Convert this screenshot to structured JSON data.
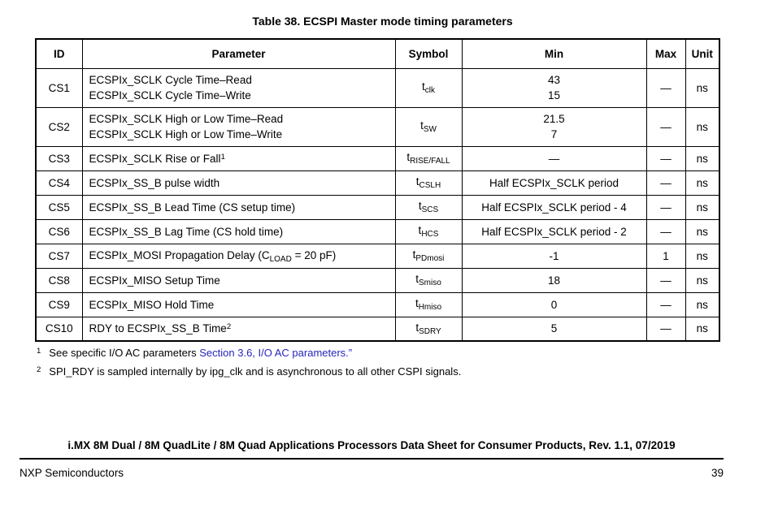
{
  "page": {
    "title": "Table 38. ECSPI Master mode timing parameters"
  },
  "colors": {
    "link": "#2525bd",
    "text": "#000000",
    "background": "#ffffff",
    "border": "#000000"
  },
  "table": {
    "headers": [
      "ID",
      "Parameter",
      "Symbol",
      "Min",
      "Max",
      "Unit"
    ],
    "rows": [
      {
        "id": "CS1",
        "parameter": [
          [
            {
              "t": "text",
              "v": "ECSPIx_SCLK Cycle Time–Read"
            }
          ],
          [
            {
              "t": "text",
              "v": "ECSPIx_SCLK Cycle Time–Write"
            }
          ]
        ],
        "symbol": {
          "base": "t",
          "sub": "clk"
        },
        "min": [
          "43",
          "15"
        ],
        "max": "—",
        "unit": "ns"
      },
      {
        "id": "CS2",
        "parameter": [
          [
            {
              "t": "text",
              "v": "ECSPIx_SCLK High or Low Time–Read"
            }
          ],
          [
            {
              "t": "text",
              "v": "ECSPIx_SCLK High or Low Time–Write"
            }
          ]
        ],
        "symbol": {
          "base": "t",
          "sub": "SW"
        },
        "min": [
          "21.5",
          "7"
        ],
        "max": "—",
        "unit": "ns"
      },
      {
        "id": "CS3",
        "parameter": [
          [
            {
              "t": "text",
              "v": "ECSPIx_SCLK Rise or Fall"
            },
            {
              "t": "sup",
              "v": "1"
            }
          ]
        ],
        "symbol": {
          "base": "t",
          "sub": "RISE/FALL"
        },
        "min": [
          "—"
        ],
        "max": "—",
        "unit": "ns"
      },
      {
        "id": "CS4",
        "parameter": [
          [
            {
              "t": "text",
              "v": "ECSPIx_SS_B pulse width"
            }
          ]
        ],
        "symbol": {
          "base": "t",
          "sub": "CSLH"
        },
        "min": [
          "Half ECSPIx_SCLK period"
        ],
        "max": "—",
        "unit": "ns"
      },
      {
        "id": "CS5",
        "parameter": [
          [
            {
              "t": "text",
              "v": "ECSPIx_SS_B Lead Time (CS setup time)"
            }
          ]
        ],
        "symbol": {
          "base": "t",
          "sub": "SCS"
        },
        "min": [
          "Half ECSPIx_SCLK period - 4"
        ],
        "max": "—",
        "unit": "ns"
      },
      {
        "id": "CS6",
        "parameter": [
          [
            {
              "t": "text",
              "v": "ECSPIx_SS_B Lag Time (CS hold time)"
            }
          ]
        ],
        "symbol": {
          "base": "t",
          "sub": "HCS"
        },
        "min": [
          "Half ECSPIx_SCLK period - 2"
        ],
        "max": "—",
        "unit": "ns"
      },
      {
        "id": "CS7",
        "parameter": [
          [
            {
              "t": "text",
              "v": "ECSPIx_MOSI Propagation Delay (C"
            },
            {
              "t": "sub",
              "v": "LOAD"
            },
            {
              "t": "text",
              "v": " = 20 pF)"
            }
          ]
        ],
        "symbol": {
          "base": "t",
          "sub": "PDmosi"
        },
        "min": [
          "-1"
        ],
        "max": "1",
        "unit": "ns"
      },
      {
        "id": "CS8",
        "parameter": [
          [
            {
              "t": "text",
              "v": "ECSPIx_MISO Setup Time"
            }
          ]
        ],
        "symbol": {
          "base": "t",
          "sub": "Smiso"
        },
        "min": [
          "18"
        ],
        "max": "—",
        "unit": "ns"
      },
      {
        "id": "CS9",
        "parameter": [
          [
            {
              "t": "text",
              "v": "ECSPIx_MISO Hold Time"
            }
          ]
        ],
        "symbol": {
          "base": "t",
          "sub": "Hmiso"
        },
        "min": [
          "0"
        ],
        "max": "—",
        "unit": "ns"
      },
      {
        "id": "CS10",
        "parameter": [
          [
            {
              "t": "text",
              "v": "RDY to ECSPIx_SS_B Time"
            },
            {
              "t": "sup",
              "v": "2"
            }
          ]
        ],
        "symbol": {
          "base": "t",
          "sub": "SDRY"
        },
        "min": [
          "5"
        ],
        "max": "—",
        "unit": "ns"
      }
    ]
  },
  "footnotes": [
    {
      "marker": "1",
      "segments": [
        {
          "t": "text",
          "v": "See specific I/O AC parameters "
        },
        {
          "t": "link",
          "v": "Section 3.6, I/O AC parameters.”"
        }
      ]
    },
    {
      "marker": "2",
      "segments": [
        {
          "t": "text",
          "v": "SPI_RDY is sampled internally by ipg_clk and is asynchronous to all other CSPI signals."
        }
      ]
    }
  ],
  "footer": {
    "doc_title": "i.MX 8M Dual / 8M QuadLite / 8M Quad Applications Processors Data Sheet for Consumer Products, Rev. 1.1, 07/2019",
    "company": "NXP Semiconductors",
    "page_number": "39"
  }
}
